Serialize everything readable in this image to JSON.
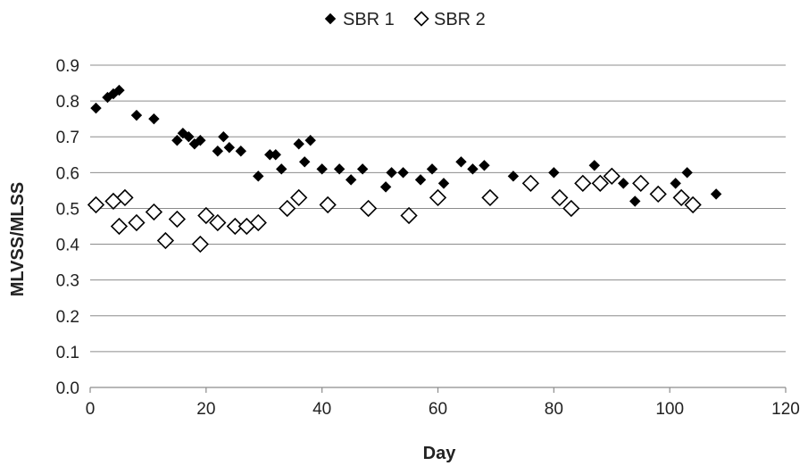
{
  "chart_data": {
    "type": "scatter",
    "title": "",
    "xlabel": "Day",
    "ylabel": "MLVSS/MLSS",
    "xlim": [
      0,
      120
    ],
    "ylim": [
      0.0,
      0.9
    ],
    "xticks": [
      0,
      20,
      40,
      60,
      80,
      100,
      120
    ],
    "xtick_labels": [
      "0",
      "20",
      "40",
      "60",
      "80",
      "100",
      "120"
    ],
    "yticks": [
      0.0,
      0.1,
      0.2,
      0.3,
      0.4,
      0.5,
      0.6,
      0.7,
      0.8,
      0.9
    ],
    "ytick_labels": [
      "0.0",
      "0.1",
      "0.2",
      "0.3",
      "0.4",
      "0.5",
      "0.6",
      "0.7",
      "0.8",
      "0.9"
    ],
    "grid": "horizontal",
    "legend_position": "top",
    "series": [
      {
        "name": "SBR 1",
        "marker": "filled-diamond",
        "color": "#000000",
        "points": [
          [
            1,
            0.78
          ],
          [
            3,
            0.81
          ],
          [
            4,
            0.82
          ],
          [
            5,
            0.83
          ],
          [
            8,
            0.76
          ],
          [
            11,
            0.75
          ],
          [
            15,
            0.69
          ],
          [
            16,
            0.71
          ],
          [
            17,
            0.7
          ],
          [
            18,
            0.68
          ],
          [
            19,
            0.69
          ],
          [
            22,
            0.66
          ],
          [
            23,
            0.7
          ],
          [
            24,
            0.67
          ],
          [
            26,
            0.66
          ],
          [
            29,
            0.59
          ],
          [
            31,
            0.65
          ],
          [
            32,
            0.65
          ],
          [
            33,
            0.61
          ],
          [
            36,
            0.68
          ],
          [
            37,
            0.63
          ],
          [
            38,
            0.69
          ],
          [
            40,
            0.61
          ],
          [
            43,
            0.61
          ],
          [
            45,
            0.58
          ],
          [
            47,
            0.61
          ],
          [
            51,
            0.56
          ],
          [
            52,
            0.6
          ],
          [
            54,
            0.6
          ],
          [
            57,
            0.58
          ],
          [
            59,
            0.61
          ],
          [
            61,
            0.57
          ],
          [
            64,
            0.63
          ],
          [
            66,
            0.61
          ],
          [
            68,
            0.62
          ],
          [
            73,
            0.59
          ],
          [
            80,
            0.6
          ],
          [
            87,
            0.62
          ],
          [
            92,
            0.57
          ],
          [
            94,
            0.52
          ],
          [
            101,
            0.57
          ],
          [
            103,
            0.6
          ],
          [
            108,
            0.54
          ]
        ]
      },
      {
        "name": "SBR 2",
        "marker": "hollow-diamond",
        "color": "#000000",
        "points": [
          [
            1,
            0.51
          ],
          [
            4,
            0.52
          ],
          [
            5,
            0.45
          ],
          [
            6,
            0.53
          ],
          [
            8,
            0.46
          ],
          [
            11,
            0.49
          ],
          [
            13,
            0.41
          ],
          [
            15,
            0.47
          ],
          [
            19,
            0.4
          ],
          [
            20,
            0.48
          ],
          [
            22,
            0.46
          ],
          [
            25,
            0.45
          ],
          [
            27,
            0.45
          ],
          [
            29,
            0.46
          ],
          [
            34,
            0.5
          ],
          [
            36,
            0.53
          ],
          [
            41,
            0.51
          ],
          [
            48,
            0.5
          ],
          [
            55,
            0.48
          ],
          [
            60,
            0.53
          ],
          [
            69,
            0.53
          ],
          [
            76,
            0.57
          ],
          [
            81,
            0.53
          ],
          [
            83,
            0.5
          ],
          [
            85,
            0.57
          ],
          [
            88,
            0.57
          ],
          [
            90,
            0.59
          ],
          [
            95,
            0.57
          ],
          [
            98,
            0.54
          ],
          [
            102,
            0.53
          ],
          [
            104,
            0.51
          ]
        ]
      }
    ]
  }
}
